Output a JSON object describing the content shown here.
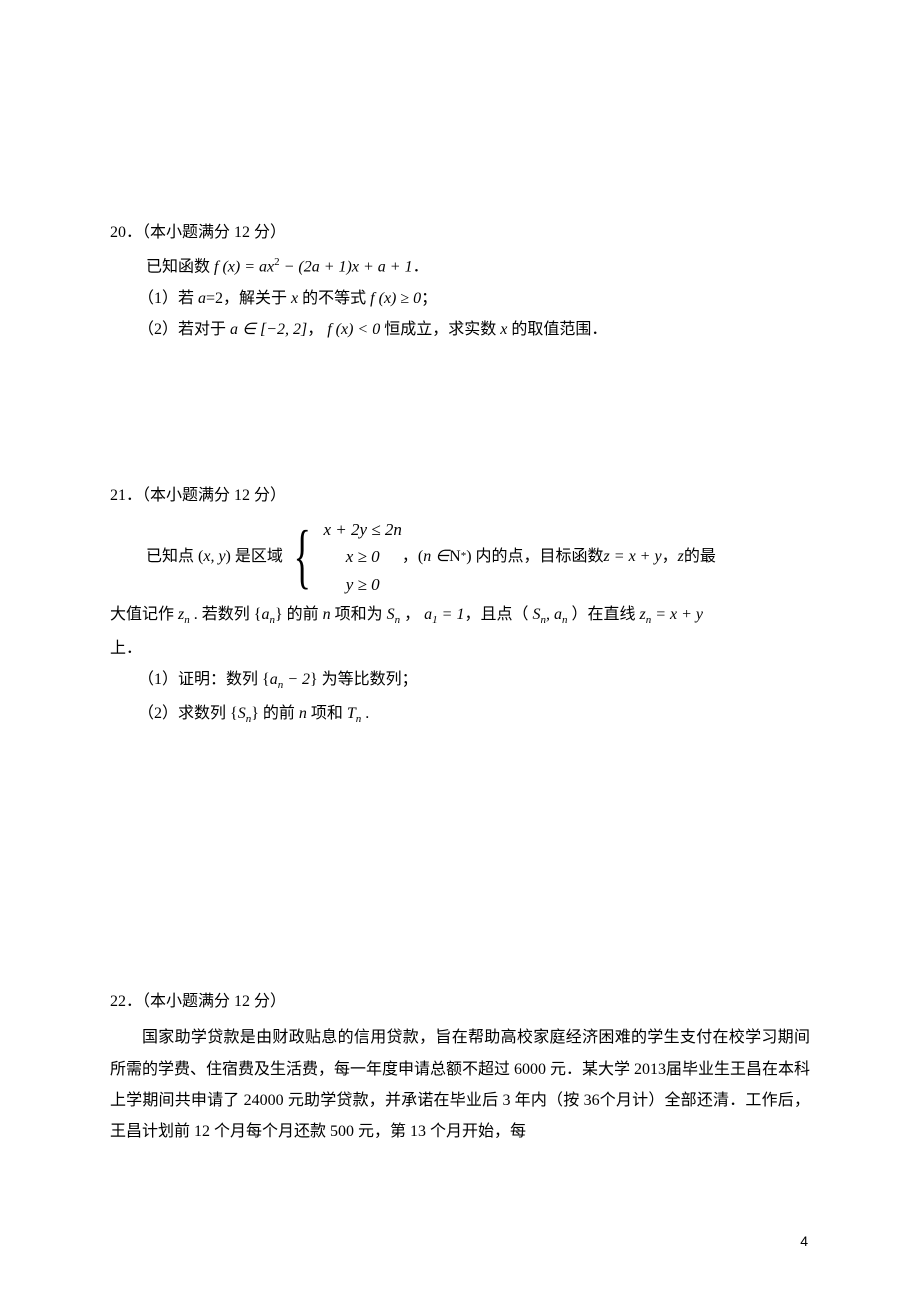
{
  "page": {
    "number": "4",
    "background_color": "#ffffff",
    "text_color": "#000000"
  },
  "p20": {
    "heading": "20．（本小题满分 12 分）",
    "line1_pre": "已知函数 ",
    "line1_fx": "f (x) = ax",
    "line1_sq": "2",
    "line1_mid": " − (2a + 1)x + a + 1",
    "line1_end": "．",
    "line2_pre": "（1）若 ",
    "line2_a": "a",
    "line2_eq": "=2，解关于 ",
    "line2_x": "x",
    "line2_mid": " 的不等式 ",
    "line2_fx": "f (x) ≥ 0",
    "line2_end": "；",
    "line3_pre": "（2）若对于 ",
    "line3_a": "a ∈ [−2, 2]",
    "line3_mid": "， ",
    "line3_fx": "f (x) < 0",
    "line3_txt": " 恒成立，求实数 ",
    "line3_x": "x",
    "line3_end": " 的取值范围．"
  },
  "p21": {
    "heading": "21．（本小题满分 12 分）",
    "l1_pre": "已知点 (",
    "l1_xy": "x, y",
    "l1_mid": ") 是区域",
    "brace_l1_a": "x + 2y ≤ 2n",
    "brace_l2_a": "x ≥ 0",
    "brace_l3_a": "y ≥ 0",
    "l1_after_pre": "，(",
    "l1_n": "n ∈ ",
    "l1_N": "N",
    "l1_star": "*",
    "l1_after_mid": ") 内的点，目标函数 ",
    "l1_z": "z = x + y",
    "l1_after_end1": "，",
    "l1_zz": "z",
    "l1_after_end2": " 的最",
    "l2_pre": "大值记作 ",
    "l2_zn_z": "z",
    "l2_zn_n": "n",
    "l2_mid1": " . 若数列 {",
    "l2_an_a": "a",
    "l2_an_n": "n",
    "l2_mid2": "} 的前 ",
    "l2_n": "n",
    "l2_mid3": " 项和为 ",
    "l2_Sn_S": "S",
    "l2_Sn_n": "n",
    "l2_mid4": " ， ",
    "l2_a1_a": "a",
    "l2_a1_1": "1",
    "l2_a1_eq": " = 1",
    "l2_mid5": "，且点（ ",
    "l2_Sn2_S": "S",
    "l2_Sn2_n": "n",
    "l2_comma": ", ",
    "l2_an2_a": "a",
    "l2_an2_n": "n",
    "l2_mid6": " ）在直线 ",
    "l2_zeq_z": "z",
    "l2_zeq_n": "n",
    "l2_zeq_eq": " = x + y",
    "l3_end": "上．",
    "q1_pre": "（1）证明：数列 {",
    "q1_a": "a",
    "q1_n": "n",
    "q1_minus": " − 2",
    "q1_end": "} 为等比数列；",
    "q2_pre": "（2）求数列 {",
    "q2_S": "S",
    "q2_n": "n",
    "q2_mid": "} 的前 ",
    "q2_nn": "n",
    "q2_mid2": " 项和 ",
    "q2_T": "T",
    "q2_Tn": "n",
    "q2_end": " ."
  },
  "p22": {
    "heading": "22．（本小题满分 12 分）",
    "body": "国家助学贷款是由财政贴息的信用贷款，旨在帮助高校家庭经济困难的学生支付在校学习期间所需的学费、住宿费及生活费，每一年度申请总额不超过 6000 元．某大学 2013届毕业生王昌在本科上学期间共申请了 24000 元助学贷款，并承诺在毕业后 3 年内（按 36个月计）全部还清．工作后，王昌计划前 12 个月每个月还款 500 元，第 13 个月开始，每"
  }
}
